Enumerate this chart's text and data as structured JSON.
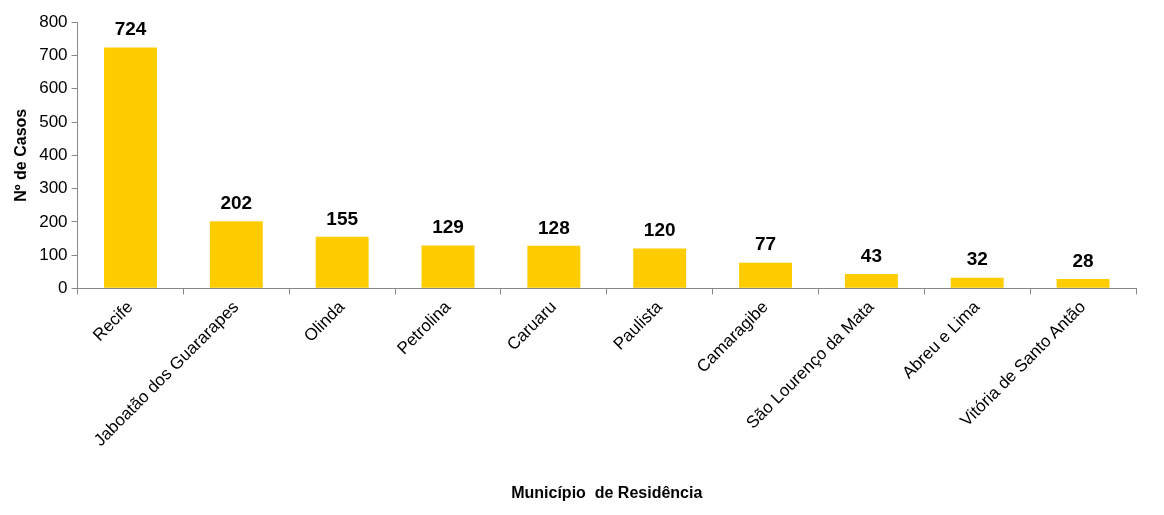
{
  "chart_data": {
    "type": "bar",
    "xlabel": "Município  de Residência",
    "ylabel": "Nº de Casos",
    "categories": [
      "Recife",
      "Jaboatão dos Guararapes",
      "Olinda",
      "Petrolina",
      "Caruaru",
      "Paulista",
      "Camaragibe",
      "São Lourenço da Mata",
      "Abreu e Lima",
      "Vitória de Santo Antão"
    ],
    "values": [
      724,
      202,
      155,
      129,
      128,
      120,
      77,
      43,
      32,
      28
    ],
    "color": "#ffcc00",
    "ylim": [
      0,
      800
    ],
    "yticks": [
      0,
      100,
      200,
      300,
      400,
      500,
      600,
      700,
      800
    ],
    "data_labels": true,
    "legend": false
  }
}
